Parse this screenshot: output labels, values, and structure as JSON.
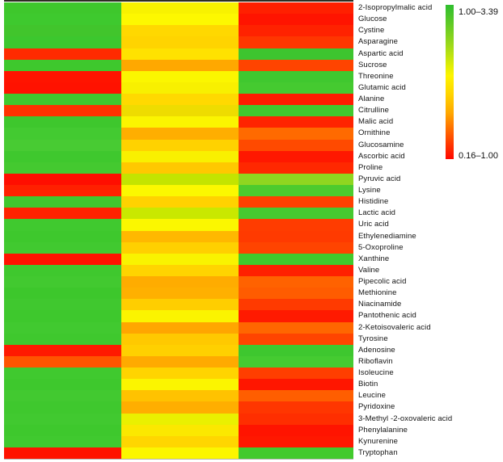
{
  "chart_data": {
    "type": "heatmap",
    "title": "",
    "n_columns": 3,
    "column_labels": [
      "",
      "",
      ""
    ],
    "rows": [
      "2-Isopropylmalic acid",
      "Glucose",
      "Cystine",
      "Asparagine",
      "Aspartic acid",
      "Sucrose",
      "Threonine",
      "Glutamic acid",
      "Alanine",
      "Citrulline",
      "Malic acid",
      "Ornithine",
      "Glucosamine",
      "Ascorbic acid",
      "Proline",
      "Pyruvic acid",
      "Lysine",
      "Histidine",
      "Lactic acid",
      "Uric acid",
      "Ethylenediamine",
      "5-Oxoproline",
      "Xanthine",
      "Valine",
      "Pipecolic acid",
      "Methionine",
      "Niacinamide",
      "Pantothenic acid",
      "2-Ketoisovaleric acid",
      "Tyrosine",
      "Adenosine",
      "Riboflavin",
      "Isoleucine",
      "Biotin",
      "Leucine",
      "Pyridoxine",
      "3-Methyl -2-oxovaleric acid",
      "Phenylalanine",
      "Kynurenine",
      "Tryptophan"
    ],
    "cells": [
      [
        "#3ec72c",
        "#f8f200",
        "#ff2000"
      ],
      [
        "#3ec92e",
        "#fdf800",
        "#ff1400"
      ],
      [
        "#41c52c",
        "#ffd800",
        "#ff2200"
      ],
      [
        "#3cc72e",
        "#ffd400",
        "#ff3600"
      ],
      [
        "#ff2a00",
        "#ffe200",
        "#3dc52f"
      ],
      [
        "#3ec82d",
        "#ffa800",
        "#ff4400"
      ],
      [
        "#ff1400",
        "#fbf600",
        "#40c82f"
      ],
      [
        "#ff1200",
        "#f8f000",
        "#45ca30"
      ],
      [
        "#3fc92e",
        "#ffd900",
        "#ff1c00"
      ],
      [
        "#ff3200",
        "#eedc00",
        "#41c82e"
      ],
      [
        "#3ec72d",
        "#fbf500",
        "#ff2400"
      ],
      [
        "#43ca31",
        "#ffae00",
        "#ff6a00"
      ],
      [
        "#48cb33",
        "#ffd200",
        "#ff4a00"
      ],
      [
        "#3fc82e",
        "#f9f000",
        "#ff1800"
      ],
      [
        "#44c930",
        "#ffc800",
        "#ff2800"
      ],
      [
        "#ff0e00",
        "#c3e400",
        "#8fd620"
      ],
      [
        "#ff2000",
        "#fbf800",
        "#4ccb2e"
      ],
      [
        "#3fc82e",
        "#ffd200",
        "#ff4000"
      ],
      [
        "#ff2200",
        "#c9e800",
        "#46c930"
      ],
      [
        "#40c92f",
        "#fbf700",
        "#ff3c00"
      ],
      [
        "#3ec82d",
        "#ffb800",
        "#ff3a00"
      ],
      [
        "#41c930",
        "#ffd000",
        "#ff4400"
      ],
      [
        "#ff1200",
        "#f9f300",
        "#40ca2c"
      ],
      [
        "#3fc82e",
        "#ffd400",
        "#ff2000"
      ],
      [
        "#42c930",
        "#ffac00",
        "#ff6200"
      ],
      [
        "#3dc72c",
        "#ffb000",
        "#ff5c00"
      ],
      [
        "#40c82f",
        "#ffce00",
        "#ff3a00"
      ],
      [
        "#3ec82d",
        "#fbf400",
        "#ff1a00"
      ],
      [
        "#41c930",
        "#ffa600",
        "#ff6600"
      ],
      [
        "#3fc82e",
        "#ffc900",
        "#ff4400"
      ],
      [
        "#ff1a00",
        "#ffd000",
        "#3ec72f"
      ],
      [
        "#ff5500",
        "#ffaa00",
        "#45cb31"
      ],
      [
        "#40c92f",
        "#ffd400",
        "#ff3e00"
      ],
      [
        "#3ec82d",
        "#fbf500",
        "#ff1600"
      ],
      [
        "#42c930",
        "#ffc200",
        "#ff5e00"
      ],
      [
        "#3fc82e",
        "#ffae00",
        "#ff3600"
      ],
      [
        "#41c930",
        "#eaf000",
        "#ff2e00"
      ],
      [
        "#3ec82d",
        "#fbe800",
        "#ff1400"
      ],
      [
        "#40c92f",
        "#ffd600",
        "#ff1800"
      ],
      [
        "#ff1200",
        "#fcf600",
        "#42ca2d"
      ]
    ],
    "legend": {
      "max_label": "1.00–3.39",
      "min_label": "0.16–1.00",
      "gradient_top_color": "#2fbe2f",
      "gradient_mid_color": "#fdf400",
      "gradient_bottom_color": "#ff0800",
      "position": "right",
      "orientation": "vertical"
    },
    "grid": false
  }
}
